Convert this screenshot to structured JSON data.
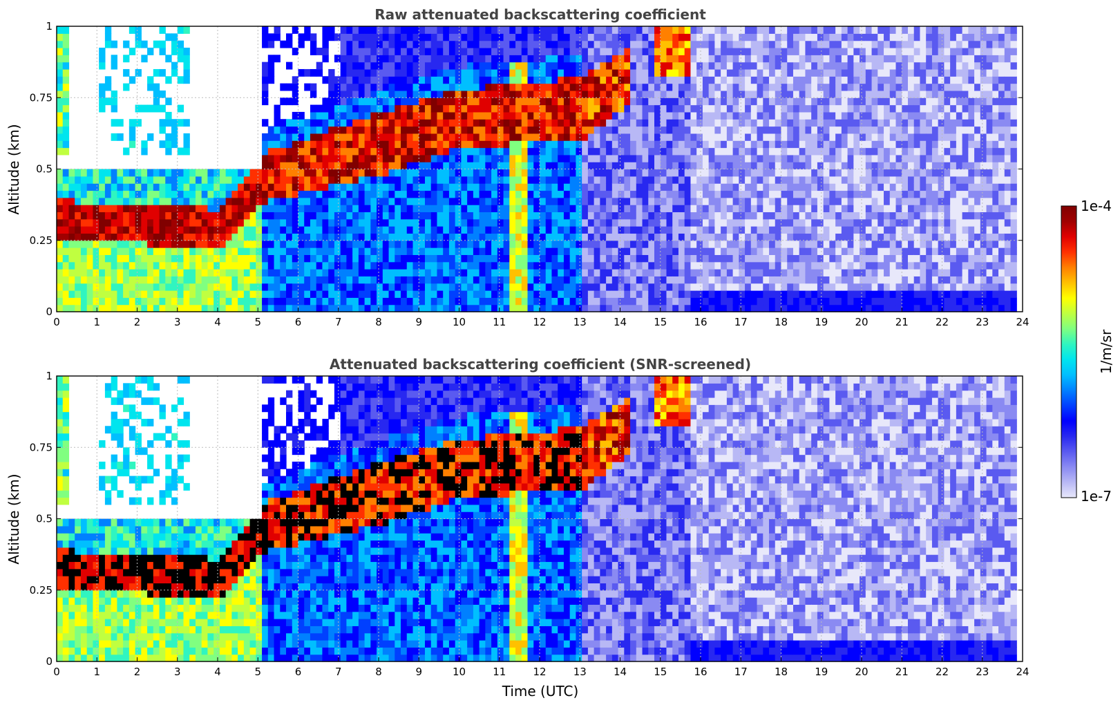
{
  "chart_data": [
    {
      "type": "heatmap",
      "title": "Raw attenuated backscattering coefficient",
      "xlabel": "",
      "ylabel": "Altitude (km)",
      "xlim": [
        0,
        24
      ],
      "ylim": [
        0,
        1
      ],
      "xticks": [
        "0",
        "1",
        "2",
        "3",
        "4",
        "5",
        "6",
        "7",
        "8",
        "9",
        "10",
        "11",
        "12",
        "13",
        "14",
        "15",
        "16",
        "17",
        "18",
        "19",
        "20",
        "21",
        "22",
        "23",
        "24"
      ],
      "yticks": [
        "0",
        "0.25",
        "0.5",
        "0.75",
        "1"
      ],
      "grid": true,
      "data_end_time": 23.8,
      "aerosol_layer_top_km": [
        {
          "t": 0,
          "base": 0.26,
          "top": 0.39
        },
        {
          "t": 4,
          "base": 0.22,
          "top": 0.36
        },
        {
          "t": 5,
          "base": 0.38,
          "top": 0.55
        },
        {
          "t": 8,
          "base": 0.48,
          "top": 0.7
        },
        {
          "t": 10,
          "base": 0.58,
          "top": 0.78
        },
        {
          "t": 13,
          "base": 0.6,
          "top": 0.82
        },
        {
          "t": 15,
          "base": 0.82,
          "top": 1.0
        }
      ]
    },
    {
      "type": "heatmap",
      "title": "Attenuated backscattering coefficient (SNR-screened)",
      "xlabel": "Time (UTC)",
      "ylabel": "Altitude (km)",
      "xlim": [
        0,
        24
      ],
      "ylim": [
        0,
        1
      ],
      "xticks": [
        "0",
        "1",
        "2",
        "3",
        "4",
        "5",
        "6",
        "7",
        "8",
        "9",
        "10",
        "11",
        "12",
        "13",
        "14",
        "15",
        "16",
        "17",
        "18",
        "19",
        "20",
        "21",
        "22",
        "23",
        "24"
      ],
      "yticks": [
        "0",
        "0.25",
        "0.5",
        "0.75",
        "1"
      ],
      "grid": true,
      "data_end_time": 23.8
    }
  ],
  "colorbar": {
    "label": "1/m/sr",
    "max_label": "1e-4",
    "min_label": "1e-7",
    "scale": "log",
    "min": 1e-07,
    "max": 0.0001,
    "colors": [
      "#e8e8fa",
      "#b8b8f5",
      "#8a8af2",
      "#5a5af0",
      "#2828f0",
      "#0000ff",
      "#0040ff",
      "#0080ff",
      "#00bfff",
      "#00e5ee",
      "#30f5c0",
      "#80ff80",
      "#c0ff40",
      "#ffff00",
      "#ffc000",
      "#ff8000",
      "#ff3000",
      "#e00000",
      "#a00000",
      "#800000"
    ]
  }
}
